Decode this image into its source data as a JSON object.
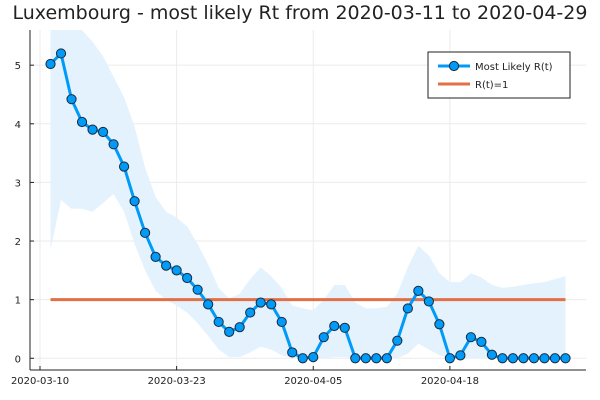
{
  "chart_data": {
    "type": "line",
    "title": "Luxembourg - most likely Rt from 2020-03-11 to 2020-04-29",
    "xlabel": "",
    "ylabel": "",
    "x_start": "2020-03-11",
    "x_ticks": [
      {
        "date": "2020-03-10",
        "label": "2020-03-10"
      },
      {
        "date": "2020-03-23",
        "label": "2020-03-23"
      },
      {
        "date": "2020-04-05",
        "label": "2020-04-05"
      },
      {
        "date": "2020-04-18",
        "label": "2020-04-18"
      }
    ],
    "y_ticks": [
      0,
      1,
      2,
      3,
      4,
      5
    ],
    "xlim": [
      "2020-03-10",
      "2020-04-30"
    ],
    "ylim": [
      -0.2,
      5.6
    ],
    "grid": true,
    "legend_position": "top-right",
    "colors": {
      "main_line": "#009AF9",
      "marker_fill": "#009AF9",
      "marker_edge": "#1b2a3a",
      "band": "#E3F2FD",
      "threshold": "#E26F46",
      "grid": "#EBEBEB",
      "axis": "#222222"
    },
    "series": [
      {
        "name": "Most Likely R(t)",
        "values": [
          5.02,
          5.2,
          4.42,
          4.03,
          3.9,
          3.86,
          3.65,
          3.27,
          2.68,
          2.14,
          1.73,
          1.58,
          1.5,
          1.37,
          1.17,
          0.92,
          0.62,
          0.45,
          0.53,
          0.78,
          0.95,
          0.92,
          0.62,
          0.1,
          0.0,
          0.02,
          0.36,
          0.55,
          0.52,
          0.0,
          0.0,
          0.0,
          0.0,
          0.3,
          0.85,
          1.15,
          0.97,
          0.58,
          0.0,
          0.05,
          0.36,
          0.28,
          0.06,
          0.0,
          0.0,
          0.0,
          0.0,
          0.0,
          0.0,
          0.0
        ]
      },
      {
        "name": "R(t)=1",
        "values": [
          1,
          1
        ]
      }
    ],
    "band_upper": [
      5.6,
      5.7,
      5.75,
      5.6,
      5.4,
      5.15,
      4.8,
      4.45,
      3.95,
      3.25,
      2.75,
      2.5,
      2.4,
      2.25,
      1.95,
      1.6,
      1.2,
      1.02,
      1.1,
      1.35,
      1.55,
      1.4,
      1.2,
      0.9,
      0.85,
      0.82,
      1.0,
      1.25,
      1.25,
      0.95,
      0.85,
      0.85,
      0.88,
      1.1,
      1.55,
      1.92,
      1.75,
      1.45,
      1.3,
      1.3,
      1.45,
      1.38,
      1.25,
      1.2,
      1.22,
      1.25,
      1.28,
      1.3,
      1.35,
      1.4
    ],
    "band_lower": [
      1.85,
      2.7,
      2.55,
      2.55,
      2.5,
      2.65,
      2.8,
      2.5,
      1.95,
      1.5,
      1.15,
      1.0,
      0.9,
      0.78,
      0.6,
      0.38,
      0.15,
      0.02,
      0.02,
      0.1,
      0.2,
      0.15,
      0.05,
      0.0,
      0.0,
      0.0,
      0.0,
      0.02,
      0.02,
      0.0,
      0.0,
      0.0,
      0.0,
      0.0,
      0.08,
      0.25,
      0.15,
      0.05,
      0.0,
      0.0,
      0.0,
      0.0,
      0.0,
      0.0,
      0.0,
      0.0,
      0.0,
      0.0,
      0.0,
      0.0
    ]
  }
}
